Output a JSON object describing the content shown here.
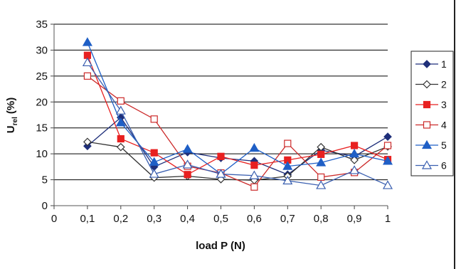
{
  "chart_data": {
    "type": "line",
    "xlabel": "load P (N)",
    "ylabel_main": "U",
    "ylabel_sub": "rel",
    "ylabel_unit": "(%)",
    "xlim": [
      0,
      1
    ],
    "ylim": [
      0,
      35
    ],
    "x_ticks": [
      0,
      0.1,
      0.2,
      0.3,
      0.4,
      0.5,
      0.6,
      0.7,
      0.8,
      0.9,
      1
    ],
    "x_tick_labels": [
      "0",
      "0,1",
      "0,2",
      "0,3",
      "0,4",
      "0,5",
      "0,6",
      "0,7",
      "0,8",
      "0,9",
      "1"
    ],
    "y_ticks": [
      0,
      5,
      10,
      15,
      20,
      25,
      30,
      35
    ],
    "y_tick_labels": [
      "0",
      "5",
      "10",
      "15",
      "20",
      "25",
      "30",
      "35"
    ],
    "grid": "horizontal",
    "legend_position": "right",
    "x": [
      0.1,
      0.2,
      0.3,
      0.4,
      0.5,
      0.6,
      0.7,
      0.8,
      0.9,
      1.0
    ],
    "series": [
      {
        "name": "1",
        "color": "#1f2f7a",
        "marker": "diamond",
        "filled": true,
        "values": [
          11.5,
          17.0,
          7.5,
          10.3,
          9.2,
          8.6,
          6.0,
          10.7,
          9.5,
          13.3
        ]
      },
      {
        "name": "2",
        "color": "#333333",
        "marker": "diamond",
        "filled": false,
        "values": [
          12.3,
          11.3,
          5.4,
          5.7,
          5.1,
          4.9,
          5.7,
          11.3,
          8.8,
          11.4
        ]
      },
      {
        "name": "3",
        "color": "#e82020",
        "marker": "square",
        "filled": true,
        "values": [
          29.0,
          12.9,
          10.2,
          6.0,
          9.5,
          7.8,
          8.8,
          9.9,
          11.6,
          8.9
        ]
      },
      {
        "name": "4",
        "color": "#cc2a2a",
        "marker": "square",
        "filled": false,
        "values": [
          25.0,
          20.2,
          16.7,
          7.6,
          6.3,
          3.6,
          12.0,
          5.5,
          6.4,
          11.6
        ]
      },
      {
        "name": "5",
        "color": "#1f5fc6",
        "marker": "triangle",
        "filled": true,
        "values": [
          31.5,
          16.0,
          8.4,
          10.9,
          6.1,
          11.1,
          7.6,
          8.3,
          10.0,
          8.6
        ]
      },
      {
        "name": "6",
        "color": "#3a5fb0",
        "marker": "triangle",
        "filled": false,
        "values": [
          27.6,
          18.3,
          6.1,
          7.9,
          6.1,
          5.8,
          4.8,
          3.9,
          6.8,
          3.9
        ]
      }
    ]
  }
}
